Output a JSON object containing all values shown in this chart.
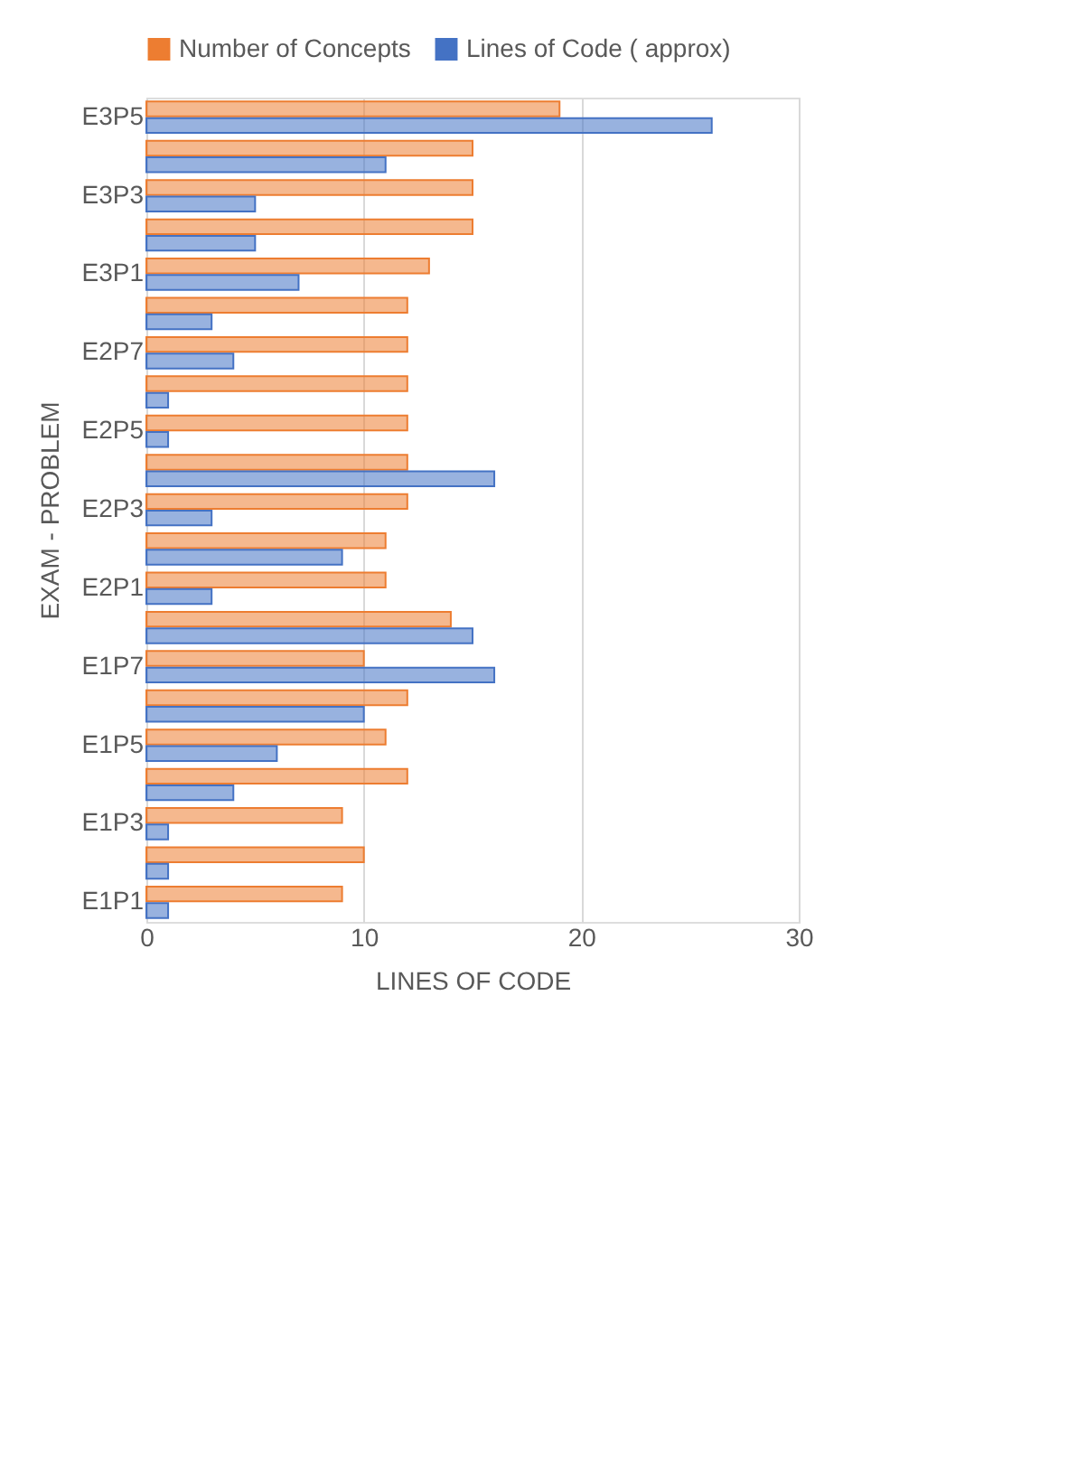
{
  "chart_data": {
    "type": "bar",
    "orientation": "horizontal",
    "xlabel": "LINES OF CODE",
    "ylabel": "EXAM - PROBLEM",
    "categories": [
      "E3P5",
      null,
      "E3P3",
      null,
      "E3P1",
      null,
      "E2P7",
      null,
      "E2P5",
      null,
      "E2P3",
      null,
      "E2P1",
      null,
      "E1P7",
      null,
      "E1P5",
      null,
      "E1P3",
      null,
      "E1P1"
    ],
    "series": [
      {
        "name": "Number of Concepts",
        "color": "#ed7d31",
        "values": [
          19,
          15,
          15,
          15,
          13,
          12,
          12,
          12,
          12,
          12,
          12,
          11,
          11,
          14,
          10,
          12,
          11,
          12,
          9,
          10,
          9
        ]
      },
      {
        "name": "Lines of Code ( approx)",
        "color": "#4472c4",
        "values": [
          26,
          11,
          5,
          5,
          7,
          3,
          4,
          1,
          1,
          16,
          3,
          9,
          3,
          15,
          16,
          10,
          6,
          4,
          1,
          1,
          1
        ]
      }
    ],
    "xlim": [
      0,
      30
    ],
    "xticks": [
      0,
      10,
      20,
      30
    ],
    "grid": "x",
    "legend": "top"
  }
}
